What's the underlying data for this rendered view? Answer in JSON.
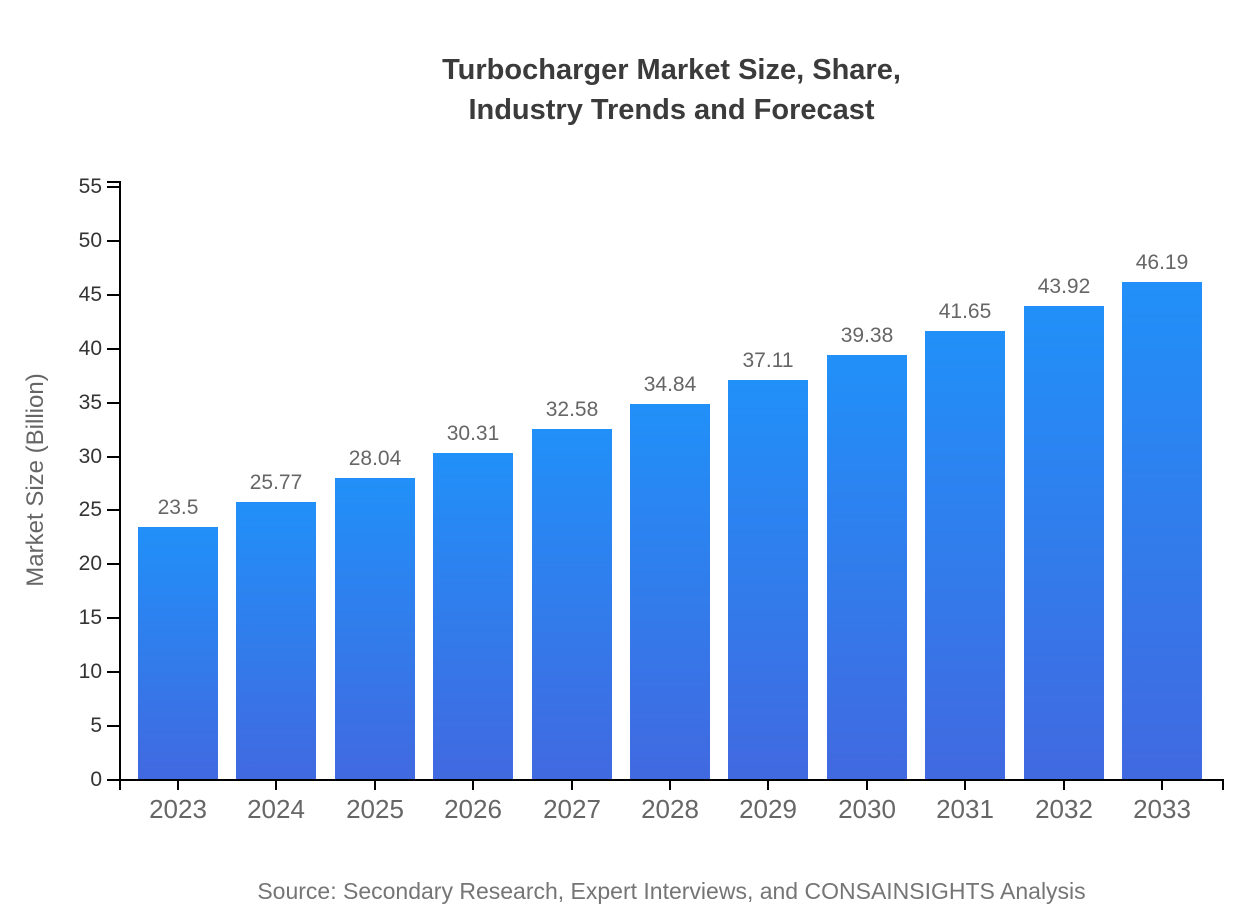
{
  "title": {
    "line1": "Turbocharger Market Size, Share,",
    "line2": "Industry Trends and Forecast"
  },
  "source": "Source: Secondary Research, Expert Interviews, and CONSAINSIGHTS Analysis",
  "colors": {
    "bar_gradient_top": "#2190f8",
    "bar_gradient_bottom": "#4169e0",
    "axis_line": "#000000",
    "title_text": "#3b3b3b",
    "y_tick_text": "#333333",
    "x_tick_text": "#666666",
    "value_label_text": "#666666",
    "y_axis_title_text": "#666666",
    "source_text": "#757575",
    "background": "#ffffff"
  },
  "chart_data": {
    "type": "bar",
    "title": "Turbocharger Market Size, Share, Industry Trends and Forecast",
    "categories": [
      "2023",
      "2024",
      "2025",
      "2026",
      "2027",
      "2028",
      "2029",
      "2030",
      "2031",
      "2032",
      "2033"
    ],
    "values": [
      23.5,
      25.77,
      28.04,
      30.31,
      32.58,
      34.84,
      37.11,
      39.38,
      41.65,
      43.92,
      46.19
    ],
    "value_labels": [
      "23.5",
      "25.77",
      "28.04",
      "30.31",
      "32.58",
      "34.84",
      "37.11",
      "39.38",
      "41.65",
      "43.92",
      "46.19"
    ],
    "xlabel": "",
    "ylabel": "Market Size (Billion)",
    "ylim": [
      0,
      55
    ],
    "ytick_step": 5,
    "grid": false,
    "legend": "none",
    "bar_value_labels_shown": true
  }
}
